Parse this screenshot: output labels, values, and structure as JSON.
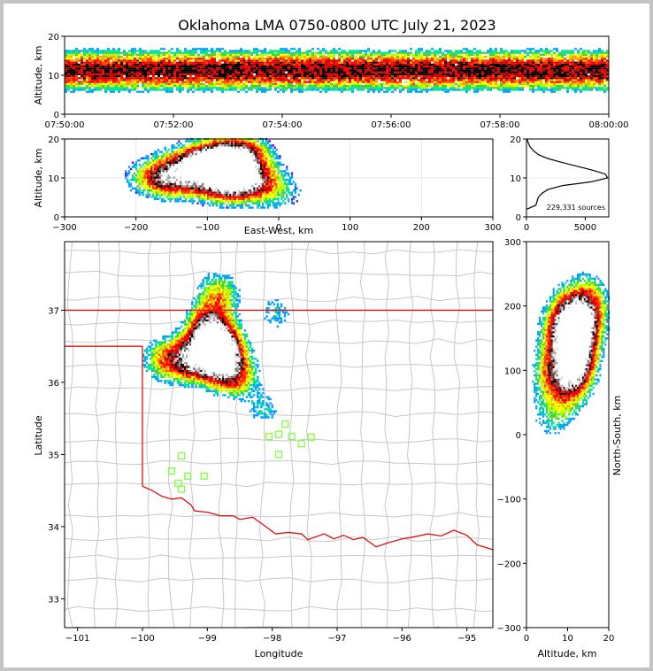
{
  "title": "Oklahoma LMA 0750-0800 UTC July 21, 2023",
  "colors": {
    "state_border": "#e01010",
    "county_lines": "#c8c8c8",
    "station_marker": "#80ff40",
    "density_scale": [
      "#1e0fd6",
      "#6a00ff",
      "#00a0ff",
      "#00e0a0",
      "#40d040",
      "#b0ff00",
      "#ffff00",
      "#ffa000",
      "#ff4000",
      "#ff0000",
      "#e00000",
      "#b00000",
      "#000000",
      "#606060",
      "#a0a0a0",
      "#d0d0d0",
      "#ffffff"
    ]
  },
  "chart_data": [
    {
      "id": "time_height",
      "type": "heatmap",
      "ylabel": "Altitude, km",
      "xlim": [
        "07:50:00",
        "08:00:00"
      ],
      "ylim": [
        0,
        20
      ],
      "x_ticks": [
        "07:50:00",
        "07:52:00",
        "07:54:00",
        "07:56:00",
        "07:58:00",
        "08:00:00"
      ],
      "y_ticks": [
        0,
        10,
        20
      ],
      "core_altitude_km": [
        8,
        14
      ],
      "peak_altitude_km": 11
    },
    {
      "id": "ew_altitude",
      "type": "heatmap",
      "xlabel": "East-West, km",
      "ylabel": "Altitude, km",
      "xlim": [
        -300,
        300
      ],
      "ylim": [
        0,
        20
      ],
      "x_ticks": [
        -300,
        -200,
        -100,
        0,
        100,
        200,
        300
      ],
      "y_ticks": [
        0,
        10,
        20
      ],
      "grid": true,
      "cells": [
        {
          "x": -170,
          "y": 10,
          "z": 0.35
        },
        {
          "x": -150,
          "y": 9,
          "z": 0.5
        },
        {
          "x": -130,
          "y": 12,
          "z": 0.6
        },
        {
          "x": -100,
          "y": 14,
          "z": 0.8
        },
        {
          "x": -75,
          "y": 13,
          "z": 1.0
        },
        {
          "x": -75,
          "y": 8,
          "z": 0.9
        },
        {
          "x": -60,
          "y": 16,
          "z": 0.75
        },
        {
          "x": -50,
          "y": 10,
          "z": 0.55
        },
        {
          "x": -30,
          "y": 8,
          "z": 0.3
        },
        {
          "x": 0,
          "y": 5,
          "z": 0.15
        }
      ]
    },
    {
      "id": "altitude_histogram",
      "type": "line",
      "annotation": "229,331 sources",
      "xlim": [
        0,
        7000
      ],
      "ylim": [
        0,
        20
      ],
      "x_ticks": [
        0,
        5000
      ],
      "y_ticks": [
        0,
        10,
        20
      ],
      "series": [
        {
          "y": [
            2,
            3,
            4,
            5,
            6,
            7,
            8,
            9,
            10,
            11,
            12,
            13,
            14,
            15,
            16,
            17,
            18,
            19,
            20
          ],
          "x": [
            50,
            800,
            900,
            1000,
            1300,
            1800,
            3000,
            5500,
            6900,
            6700,
            5600,
            4300,
            3000,
            1800,
            1000,
            600,
            300,
            150,
            50
          ]
        }
      ]
    },
    {
      "id": "plan_view",
      "type": "heatmap",
      "xlabel": "Longitude",
      "ylabel": "Latitude",
      "xlim": [
        -101.2,
        -94.6
      ],
      "ylim": [
        32.6,
        37.95
      ],
      "x_ticks": [
        -101,
        -100,
        -99,
        -98,
        -97,
        -96,
        -95
      ],
      "y_ticks": [
        33,
        34,
        35,
        36,
        37
      ],
      "cells": [
        {
          "x": -99.0,
          "y": 36.8,
          "z": 0.5
        },
        {
          "x": -98.95,
          "y": 36.6,
          "z": 0.85
        },
        {
          "x": -98.8,
          "y": 36.45,
          "z": 1.0
        },
        {
          "x": -98.75,
          "y": 36.2,
          "z": 0.9
        },
        {
          "x": -99.1,
          "y": 36.35,
          "z": 0.75
        },
        {
          "x": -99.35,
          "y": 36.3,
          "z": 0.6
        },
        {
          "x": -99.7,
          "y": 36.3,
          "z": 0.4
        },
        {
          "x": -98.85,
          "y": 37.2,
          "z": 0.45
        },
        {
          "x": -98.5,
          "y": 36.05,
          "z": 0.3
        },
        {
          "x": -98.15,
          "y": 35.6,
          "z": 0.2
        },
        {
          "x": -97.95,
          "y": 36.95,
          "z": 0.2
        }
      ],
      "stations": [
        {
          "lon": -99.4,
          "lat": 34.98
        },
        {
          "lon": -99.55,
          "lat": 34.77
        },
        {
          "lon": -99.3,
          "lat": 34.7
        },
        {
          "lon": -99.45,
          "lat": 34.6
        },
        {
          "lon": -99.4,
          "lat": 34.52
        },
        {
          "lon": -99.05,
          "lat": 34.7
        },
        {
          "lon": -98.05,
          "lat": 35.25
        },
        {
          "lon": -97.9,
          "lat": 35.28
        },
        {
          "lon": -97.8,
          "lat": 35.42
        },
        {
          "lon": -97.7,
          "lat": 35.25
        },
        {
          "lon": -97.55,
          "lat": 35.15
        },
        {
          "lon": -97.4,
          "lat": 35.24
        },
        {
          "lon": -97.9,
          "lat": 35.0
        }
      ]
    },
    {
      "id": "ns_altitude",
      "type": "heatmap",
      "xlabel": "Altitude, km",
      "ylabel": "North-South, km",
      "xlim": [
        0,
        20
      ],
      "ylim": [
        -300,
        300
      ],
      "x_ticks": [
        0,
        10,
        20
      ],
      "y_ticks": [
        -300,
        -200,
        -100,
        0,
        100,
        200,
        300
      ],
      "cells": [
        {
          "x": 10,
          "y": 180,
          "z": 0.7
        },
        {
          "x": 13,
          "y": 170,
          "z": 0.9
        },
        {
          "x": 12,
          "y": 130,
          "z": 1.0
        },
        {
          "x": 11,
          "y": 100,
          "z": 0.95
        },
        {
          "x": 8,
          "y": 150,
          "z": 0.6
        },
        {
          "x": 15,
          "y": 200,
          "z": 0.5
        },
        {
          "x": 6,
          "y": 90,
          "z": 0.45
        },
        {
          "x": 9,
          "y": 50,
          "z": 0.25
        },
        {
          "x": 5,
          "y": 20,
          "z": 0.15
        }
      ]
    }
  ]
}
